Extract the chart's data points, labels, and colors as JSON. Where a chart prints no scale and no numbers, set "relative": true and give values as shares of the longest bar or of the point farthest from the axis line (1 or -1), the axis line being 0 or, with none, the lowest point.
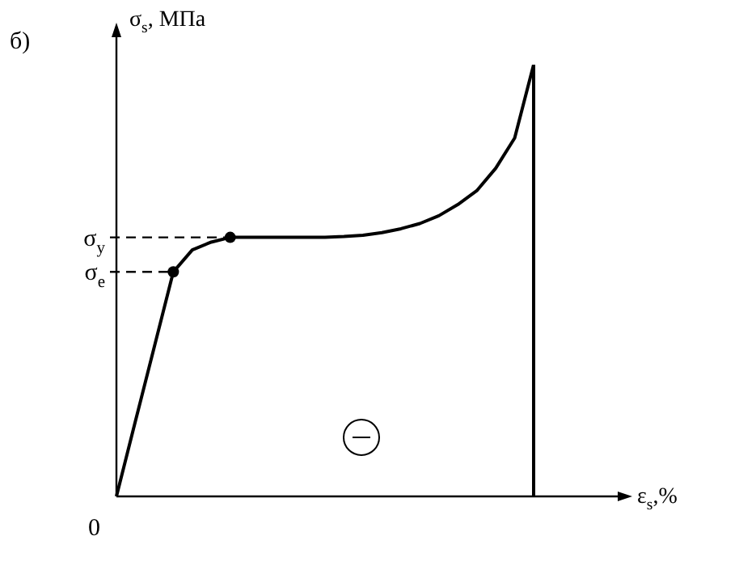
{
  "chart_data": {
    "type": "line",
    "relative": true,
    "legend": false,
    "xlabel": "ε$_{s}$,%",
    "ylabel": "σ$_{s}$, МПа",
    "annotations": [
      "б)",
      "0"
    ],
    "ref_lines": [
      {
        "axis": "y",
        "value": 0.6,
        "label": "σ$_{y}$",
        "line_style": "dashed",
        "color": "#000000"
      },
      {
        "axis": "y",
        "value": 0.52,
        "label": "σ$_{e}$",
        "line_style": "dashed",
        "color": "#000000"
      }
    ],
    "categories": [
      null,
      null,
      null,
      null,
      null,
      null,
      null,
      null,
      null,
      null,
      null,
      null,
      null,
      null,
      null,
      null,
      null,
      null,
      null,
      null,
      null,
      null,
      null
    ],
    "series": [
      {
        "type": "line",
        "color": "#000000",
        "marker": "none",
        "values": [
          0,
          0.174,
          0.347,
          0.52,
          0.571,
          0.589,
          0.6,
          0.6,
          0.6,
          0.6,
          0.6,
          0.6,
          0.602,
          0.605,
          0.611,
          0.62,
          0.632,
          0.65,
          0.676,
          0.708,
          0.76,
          0.83,
          1
        ]
      }
    ]
  }
}
